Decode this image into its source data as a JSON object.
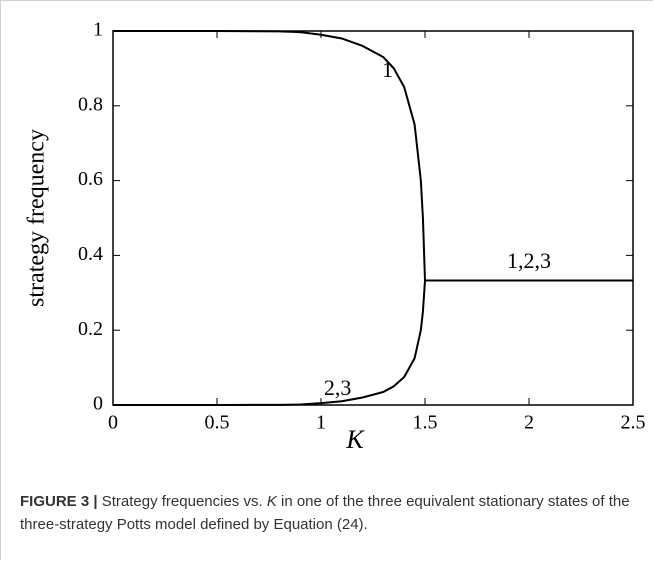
{
  "chart_data": {
    "type": "line",
    "xlabel": "K",
    "ylabel": "strategy frequency",
    "x": [
      0,
      0.5,
      0.8,
      0.9,
      1.0,
      1.1,
      1.2,
      1.3,
      1.35,
      1.4,
      1.45,
      1.48,
      1.49,
      1.5,
      2.5
    ],
    "series": [
      {
        "name": "1",
        "color": "#000000",
        "values": [
          1,
          1,
          0.999,
          0.997,
          0.99,
          0.98,
          0.96,
          0.93,
          0.9,
          0.85,
          0.75,
          0.6,
          0.5,
          0.333,
          0.333
        ]
      },
      {
        "name": "2,3",
        "color": "#000000",
        "values": [
          0,
          0,
          0.0005,
          0.0015,
          0.005,
          0.01,
          0.02,
          0.035,
          0.05,
          0.075,
          0.125,
          0.2,
          0.25,
          0.333,
          0.333
        ]
      }
    ],
    "annotations": [
      "1,2,3"
    ],
    "xlim": [
      0,
      2.5
    ],
    "xticks": [
      0,
      0.5,
      1,
      1.5,
      2,
      2.5
    ],
    "ylim": [
      0,
      1
    ],
    "yticks": [
      0,
      0.2,
      0.4,
      0.6,
      0.8,
      1
    ]
  },
  "caption": {
    "label": "FIGURE 3 |",
    "text_before": "Strategy frequencies vs. ",
    "variable": "K",
    "text_after": " in one of the three equivalent stationary states of the three-strategy Potts model defined by Equation (24)."
  }
}
